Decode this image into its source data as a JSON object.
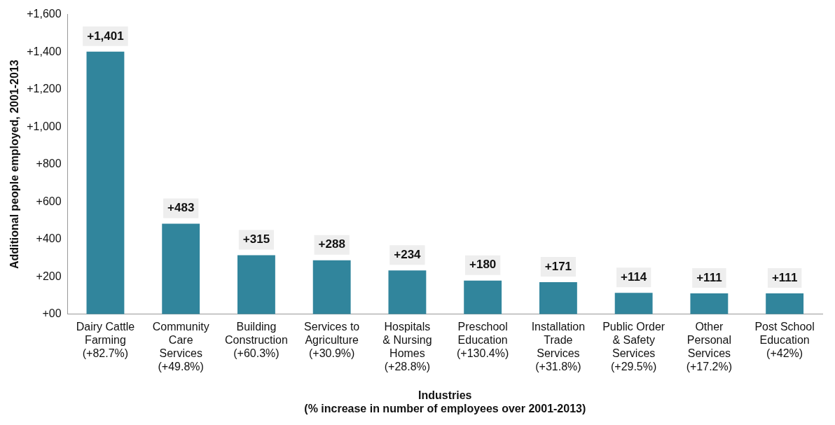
{
  "chart_data": {
    "type": "bar",
    "ylabel": "Additional people employed, 2001-2013",
    "xlabel": "Industries\n(% increase in number of employees over 2001-2013)",
    "categories": [
      "Dairy Cattle\nFarming\n(+82.7%)",
      "Community\nCare\nServices\n(+49.8%)",
      "Building\nConstruction\n(+60.3%)",
      "Services to\nAgriculture\n(+30.9%)",
      "Hospitals\n& Nursing\nHomes\n(+28.8%)",
      "Preschool\nEducation\n(+130.4%)",
      "Installation\nTrade\nServices\n(+31.8%)",
      "Public Order\n& Safety\nServices\n(+29.5%)",
      "Other\nPersonal\nServices\n(+17.2%)",
      "Post School\nEducation\n(+42%)"
    ],
    "values": [
      1401,
      483,
      315,
      288,
      234,
      180,
      171,
      114,
      111,
      111
    ],
    "value_labels": [
      "+1,401",
      "+483",
      "+315",
      "+288",
      "+234",
      "+180",
      "+171",
      "+114",
      "+111",
      "+111"
    ],
    "color": "#31859c",
    "ylim": [
      0,
      1600
    ],
    "yticks": [
      {
        "value": 0,
        "label": "+00"
      },
      {
        "value": 200,
        "label": "+200"
      },
      {
        "value": 400,
        "label": "+400"
      },
      {
        "value": 600,
        "label": "+600"
      },
      {
        "value": 800,
        "label": "+800"
      },
      {
        "value": 1000,
        "label": "+1,000"
      },
      {
        "value": 1200,
        "label": "+1,200"
      },
      {
        "value": 1400,
        "label": "+1,400"
      },
      {
        "value": 1600,
        "label": "+1,600"
      }
    ],
    "grid": false,
    "legend": false
  }
}
